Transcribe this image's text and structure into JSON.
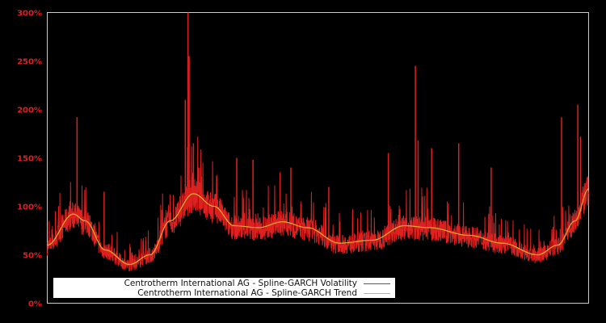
{
  "chart_data": {
    "type": "line",
    "title": "",
    "xlabel": "",
    "ylabel": "",
    "ylim": [
      0,
      300
    ],
    "y_ticks": [
      "0%",
      "50%",
      "100%",
      "150%",
      "200%",
      "250%",
      "300%"
    ],
    "y_tick_values": [
      0,
      50,
      100,
      150,
      200,
      250,
      300
    ],
    "grid": false,
    "legend_position": "lower-left",
    "background": "#000000",
    "axis_color": "#cccccc",
    "tick_color": "#dd2020",
    "series": [
      {
        "name": "Centrotherm International AG - Spline-GARCH Volatility",
        "color": "#dd2020",
        "note": "noisy daily volatility; baseline follows trend with spikes",
        "spikes_x_frac": [
          0.015,
          0.055,
          0.105,
          0.255,
          0.26,
          0.262,
          0.27,
          0.28,
          0.35,
          0.38,
          0.43,
          0.45,
          0.52,
          0.63,
          0.68,
          0.685,
          0.71,
          0.76,
          0.82,
          0.95,
          0.98,
          0.985
        ],
        "spikes_values": [
          95,
          192,
          115,
          210,
          300,
          255,
          165,
          140,
          150,
          148,
          135,
          140,
          120,
          155,
          245,
          168,
          160,
          165,
          140,
          192,
          205,
          172
        ]
      },
      {
        "name": "Centrotherm International AG - Spline-GARCH Trend",
        "color": "#e0b030",
        "x_frac": [
          0,
          0.048,
          0.07,
          0.107,
          0.152,
          0.19,
          0.227,
          0.27,
          0.308,
          0.345,
          0.39,
          0.435,
          0.48,
          0.54,
          0.6,
          0.66,
          0.705,
          0.78,
          0.84,
          0.906,
          0.943,
          0.975,
          1.0
        ],
        "values": [
          60,
          92,
          85,
          55,
          40,
          50,
          85,
          113,
          100,
          80,
          78,
          84,
          78,
          62,
          65,
          80,
          78,
          70,
          62,
          50,
          60,
          85,
          118
        ]
      }
    ]
  },
  "legend": {
    "items": [
      {
        "label": "Centrotherm International AG - Spline-GARCH Volatility",
        "color": "#dd2020"
      },
      {
        "label": "Centrotherm International AG - Spline-GARCH Trend",
        "color": "#e0b030"
      }
    ]
  }
}
